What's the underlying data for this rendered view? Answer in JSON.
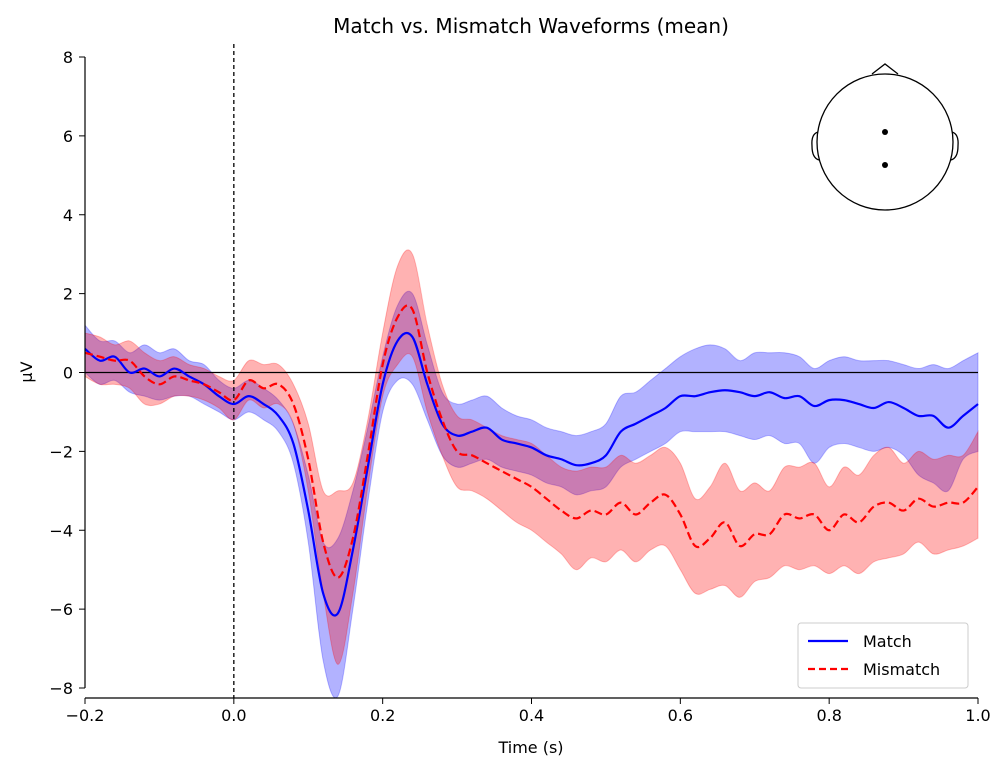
{
  "chart_data": {
    "type": "line",
    "title": "Match vs. Mismatch Waveforms (mean)",
    "xlabel": "Time (s)",
    "ylabel": "μV",
    "xlim": [
      -0.2,
      1.0
    ],
    "ylim": [
      -8,
      8
    ],
    "x_ticks": [
      -0.2,
      0.0,
      0.2,
      0.4,
      0.6,
      0.8,
      1.0
    ],
    "x_tick_labels": [
      "−0.2",
      "0.0",
      "0.2",
      "0.4",
      "0.6",
      "0.8",
      "1.0"
    ],
    "y_ticks": [
      -8,
      -6,
      -4,
      -2,
      0,
      2,
      4,
      6,
      8
    ],
    "y_tick_labels": [
      "−8",
      "−6",
      "−4",
      "−2",
      "0",
      "2",
      "4",
      "6",
      "8"
    ],
    "grid": false,
    "legend_position": "lower-right",
    "reference_lines": {
      "zero_y": true,
      "zero_x_dashed": true
    },
    "sensor_inset": {
      "position": "top-right",
      "sensor_count": 2
    },
    "series": [
      {
        "name": "Match",
        "color": "#0000ff",
        "style": "solid",
        "x": [
          -0.2,
          -0.18,
          -0.16,
          -0.14,
          -0.12,
          -0.1,
          -0.08,
          -0.06,
          -0.04,
          -0.02,
          0.0,
          0.02,
          0.04,
          0.06,
          0.08,
          0.1,
          0.12,
          0.14,
          0.16,
          0.18,
          0.2,
          0.22,
          0.24,
          0.26,
          0.28,
          0.3,
          0.32,
          0.34,
          0.36,
          0.38,
          0.4,
          0.42,
          0.44,
          0.46,
          0.48,
          0.5,
          0.52,
          0.54,
          0.56,
          0.58,
          0.6,
          0.62,
          0.64,
          0.66,
          0.68,
          0.7,
          0.72,
          0.74,
          0.76,
          0.78,
          0.8,
          0.82,
          0.84,
          0.86,
          0.88,
          0.9,
          0.92,
          0.94,
          0.96,
          0.98,
          1.0
        ],
        "y": [
          0.6,
          0.3,
          0.4,
          0.0,
          0.1,
          -0.1,
          0.1,
          -0.1,
          -0.3,
          -0.6,
          -0.8,
          -0.6,
          -0.8,
          -1.1,
          -1.8,
          -3.5,
          -5.6,
          -6.1,
          -4.5,
          -2.4,
          -0.3,
          0.8,
          0.9,
          -0.3,
          -1.3,
          -1.6,
          -1.5,
          -1.4,
          -1.7,
          -1.8,
          -1.9,
          -2.1,
          -2.2,
          -2.35,
          -2.3,
          -2.1,
          -1.5,
          -1.3,
          -1.1,
          -0.9,
          -0.6,
          -0.6,
          -0.5,
          -0.45,
          -0.5,
          -0.6,
          -0.5,
          -0.65,
          -0.6,
          -0.85,
          -0.7,
          -0.7,
          -0.8,
          -0.9,
          -0.75,
          -0.9,
          -1.1,
          -1.1,
          -1.4,
          -1.1,
          -0.8
        ],
        "ci_low": [
          0.0,
          -0.3,
          -0.2,
          -0.5,
          -0.6,
          -0.7,
          -0.6,
          -0.6,
          -0.8,
          -1.0,
          -1.2,
          -1.0,
          -1.2,
          -1.5,
          -2.3,
          -4.3,
          -7.3,
          -8.2,
          -6.0,
          -3.3,
          -1.0,
          -0.2,
          -0.3,
          -1.2,
          -2.1,
          -2.4,
          -2.3,
          -2.2,
          -2.4,
          -2.5,
          -2.6,
          -2.8,
          -2.9,
          -3.1,
          -3.0,
          -2.9,
          -2.4,
          -2.2,
          -2.0,
          -1.8,
          -1.5,
          -1.5,
          -1.5,
          -1.5,
          -1.6,
          -1.7,
          -1.6,
          -1.8,
          -1.8,
          -2.3,
          -1.9,
          -1.8,
          -1.9,
          -2.0,
          -1.9,
          -2.1,
          -2.6,
          -2.8,
          -3.0,
          -2.2,
          -2.0
        ],
        "ci_high": [
          1.2,
          0.8,
          0.8,
          0.5,
          0.7,
          0.5,
          0.6,
          0.3,
          0.2,
          -0.2,
          -0.4,
          -0.2,
          -0.4,
          -0.7,
          -1.3,
          -2.6,
          -4.3,
          -4.2,
          -3.0,
          -1.4,
          0.4,
          1.7,
          2.0,
          0.7,
          -0.5,
          -0.8,
          -0.7,
          -0.6,
          -0.9,
          -1.1,
          -1.2,
          -1.4,
          -1.5,
          -1.6,
          -1.5,
          -1.3,
          -0.6,
          -0.5,
          -0.2,
          0.1,
          0.4,
          0.6,
          0.7,
          0.6,
          0.3,
          0.5,
          0.5,
          0.5,
          0.4,
          0.1,
          0.3,
          0.4,
          0.3,
          0.3,
          0.3,
          0.2,
          0.1,
          0.2,
          0.1,
          0.3,
          0.5
        ]
      },
      {
        "name": "Mismatch",
        "color": "#ff0000",
        "style": "dashed",
        "x": [
          -0.2,
          -0.18,
          -0.16,
          -0.14,
          -0.12,
          -0.1,
          -0.08,
          -0.06,
          -0.04,
          -0.02,
          0.0,
          0.02,
          0.04,
          0.06,
          0.08,
          0.1,
          0.12,
          0.14,
          0.16,
          0.18,
          0.2,
          0.22,
          0.24,
          0.26,
          0.28,
          0.3,
          0.32,
          0.34,
          0.36,
          0.38,
          0.4,
          0.42,
          0.44,
          0.46,
          0.48,
          0.5,
          0.52,
          0.54,
          0.56,
          0.58,
          0.6,
          0.62,
          0.64,
          0.66,
          0.68,
          0.7,
          0.72,
          0.74,
          0.76,
          0.78,
          0.8,
          0.82,
          0.84,
          0.86,
          0.88,
          0.9,
          0.92,
          0.94,
          0.96,
          0.98,
          1.0
        ],
        "y": [
          0.5,
          0.4,
          0.3,
          0.3,
          -0.1,
          -0.3,
          -0.1,
          -0.2,
          -0.3,
          -0.5,
          -0.7,
          -0.2,
          -0.4,
          -0.3,
          -0.8,
          -2.2,
          -4.3,
          -5.2,
          -4.2,
          -2.1,
          0.2,
          1.4,
          1.6,
          0.0,
          -1.2,
          -2.0,
          -2.1,
          -2.3,
          -2.5,
          -2.7,
          -2.9,
          -3.2,
          -3.5,
          -3.7,
          -3.5,
          -3.6,
          -3.3,
          -3.6,
          -3.3,
          -3.1,
          -3.6,
          -4.4,
          -4.2,
          -3.8,
          -4.4,
          -4.1,
          -4.1,
          -3.6,
          -3.7,
          -3.6,
          -4.0,
          -3.6,
          -3.8,
          -3.4,
          -3.3,
          -3.5,
          -3.2,
          -3.4,
          -3.3,
          -3.3,
          -2.9
        ],
        "ci_low": [
          -0.1,
          -0.3,
          -0.3,
          -0.4,
          -0.8,
          -0.8,
          -0.6,
          -0.6,
          -0.7,
          -0.9,
          -1.2,
          -0.7,
          -0.9,
          -0.8,
          -1.3,
          -3.0,
          -5.6,
          -7.4,
          -5.6,
          -2.9,
          -0.6,
          0.2,
          0.4,
          -1.0,
          -2.1,
          -2.9,
          -3.0,
          -3.2,
          -3.5,
          -3.8,
          -4.0,
          -4.3,
          -4.6,
          -5.0,
          -4.7,
          -4.8,
          -4.5,
          -4.8,
          -4.5,
          -4.4,
          -5.0,
          -5.6,
          -5.5,
          -5.4,
          -5.7,
          -5.3,
          -5.2,
          -4.9,
          -5.0,
          -4.9,
          -5.1,
          -4.9,
          -5.1,
          -4.8,
          -4.7,
          -4.6,
          -4.3,
          -4.6,
          -4.5,
          -4.4,
          -4.2
        ],
        "ci_high": [
          1.0,
          0.9,
          0.7,
          0.8,
          0.5,
          0.3,
          0.4,
          0.2,
          0.1,
          -0.1,
          -0.2,
          0.3,
          0.2,
          0.2,
          -0.3,
          -1.3,
          -3.0,
          -3.0,
          -2.8,
          -1.2,
          1.0,
          2.7,
          3.0,
          1.2,
          -0.3,
          -1.1,
          -1.2,
          -1.4,
          -1.6,
          -1.7,
          -1.8,
          -2.1,
          -2.4,
          -2.5,
          -2.4,
          -2.4,
          -2.1,
          -2.3,
          -2.1,
          -1.9,
          -2.3,
          -3.2,
          -2.9,
          -2.3,
          -3.0,
          -2.8,
          -3.0,
          -2.4,
          -2.4,
          -2.3,
          -2.9,
          -2.4,
          -2.6,
          -2.1,
          -1.9,
          -2.3,
          -2.0,
          -2.2,
          -2.1,
          -2.1,
          -1.5
        ]
      }
    ]
  }
}
